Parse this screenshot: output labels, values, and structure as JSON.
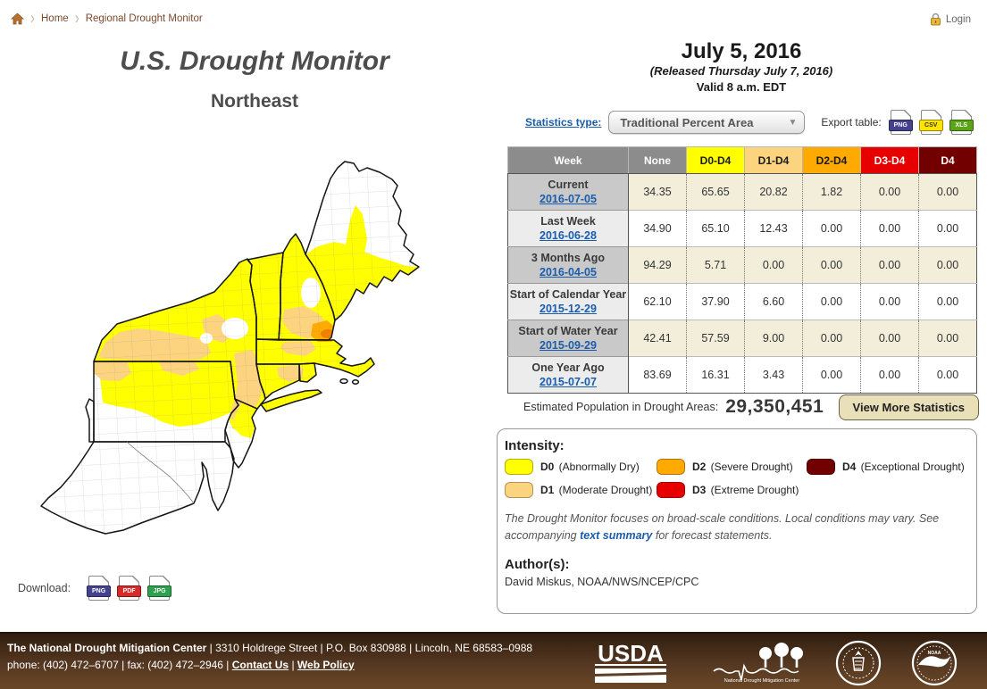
{
  "breadcrumb": {
    "home": "Home",
    "page": "Regional Drought Monitor"
  },
  "login_label": "Login",
  "left": {
    "title": "U.S. Drought Monitor",
    "subtitle": "Northeast",
    "download_label": "Download:",
    "download_formats": [
      {
        "label": "PNG",
        "bg": "#44418F",
        "fg": "#FFFFFF"
      },
      {
        "label": "PDF",
        "bg": "#D42A2A",
        "fg": "#FFFFFF"
      },
      {
        "label": "JPG",
        "bg": "#2FA04E",
        "fg": "#FFFFFF"
      }
    ]
  },
  "header": {
    "date": "July 5, 2016",
    "released": "(Released Thursday July 7, 2016)",
    "valid": "Valid 8 a.m. EDT"
  },
  "controls": {
    "statistics_type_label": "Statistics type:",
    "statistics_type_value": "Traditional Percent Area",
    "export_label": "Export table:",
    "export_formats": [
      {
        "label": "PNG",
        "bg": "#44418F",
        "fg": "#FFFFFF"
      },
      {
        "label": "CSV",
        "bg": "#FFE400",
        "fg": "#333333"
      },
      {
        "label": "XLS",
        "bg": "#5AA417",
        "fg": "#FFFFFF"
      }
    ]
  },
  "drought_table": {
    "columns": [
      "Week",
      "None",
      "D0-D4",
      "D1-D4",
      "D2-D4",
      "D3-D4",
      "D4"
    ],
    "rows": [
      {
        "label": "Current",
        "date": "2016-07-05",
        "values": [
          "34.35",
          "65.65",
          "20.82",
          "1.82",
          "0.00",
          "0.00"
        ]
      },
      {
        "label": "Last Week",
        "date": "2016-06-28",
        "values": [
          "34.90",
          "65.10",
          "12.43",
          "0.00",
          "0.00",
          "0.00"
        ]
      },
      {
        "label": "3 Months Ago",
        "date": "2016-04-05",
        "values": [
          "94.29",
          "5.71",
          "0.00",
          "0.00",
          "0.00",
          "0.00"
        ]
      },
      {
        "label": "Start of Calendar Year",
        "date": "2015-12-29",
        "values": [
          "62.10",
          "37.90",
          "6.60",
          "0.00",
          "0.00",
          "0.00"
        ]
      },
      {
        "label": "Start of Water Year",
        "date": "2015-09-29",
        "values": [
          "42.41",
          "57.59",
          "9.00",
          "0.00",
          "0.00",
          "0.00"
        ]
      },
      {
        "label": "One Year Ago",
        "date": "2015-07-07",
        "values": [
          "83.69",
          "16.31",
          "3.43",
          "0.00",
          "0.00",
          "0.00"
        ]
      }
    ]
  },
  "population": {
    "label": "Estimated Population in Drought Areas:",
    "value": "29,350,451",
    "button": "View More Statistics"
  },
  "legend": {
    "title": "Intensity:",
    "items": [
      {
        "code": "D0",
        "desc": "(Abnormally Dry)",
        "color": "#FFFF00"
      },
      {
        "code": "D1",
        "desc": "(Moderate Drought)",
        "color": "#FCD37F"
      },
      {
        "code": "D2",
        "desc": "(Severe Drought)",
        "color": "#FFAA00"
      },
      {
        "code": "D3",
        "desc": "(Extreme Drought)",
        "color": "#E60000"
      },
      {
        "code": "D4",
        "desc": "(Exceptional Drought)",
        "color": "#730000"
      }
    ]
  },
  "disclaimer": {
    "pre": "The Drought Monitor focuses on broad-scale conditions. Local conditions may vary. See accompanying ",
    "link": "text summary",
    "post": " for forecast statements."
  },
  "authors": {
    "title": "Author(s):",
    "names": "David Miskus, NOAA/NWS/NCEP/CPC"
  },
  "footer": {
    "org": "The National Drought Mitigation Center",
    "address": " | 3310 Holdrege Street | P.O. Box 830988 | Lincoln, NE 68583–0988",
    "phone_fax": "phone: (402) 472–6707 | fax: (402) 472–2946 | ",
    "contact": "Contact Us",
    "sep": " | ",
    "web_policy": "Web Policy",
    "logos": [
      "USDA",
      "National Drought Mitigation Center",
      "Department of Commerce",
      "NOAA"
    ]
  },
  "colors": {
    "d0": "#FFFF00",
    "d1": "#FCD37F",
    "d2": "#FFAA00",
    "d3": "#E60000",
    "d4": "#730000",
    "link": "#1A5DAD",
    "footer_brown": "#553822"
  }
}
